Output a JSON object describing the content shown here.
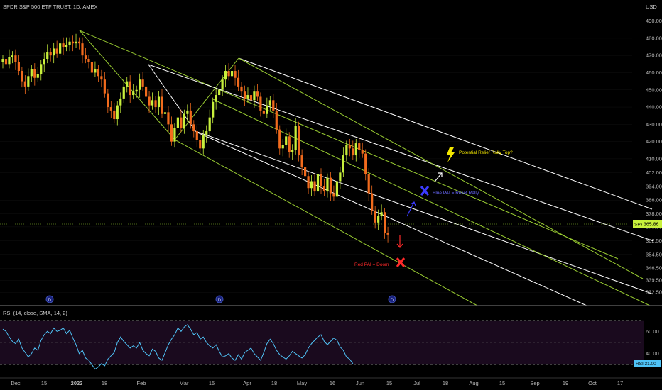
{
  "header": {
    "symbol_title": "SPDR S&P 500 ETF TRUST, 1D, AMEX",
    "currency": "USD"
  },
  "chart_data": [
    {
      "type": "candlestick",
      "title": "SPDR S&P 500 ETF TRUST, 1D, AMEX",
      "y_unit": "USD",
      "ylim": [
        326,
        496
      ],
      "x_tick_labels": [
        "Dec",
        "15",
        "2022",
        "18",
        "Feb",
        "Mar",
        "15",
        "Apr",
        "18",
        "May",
        "16",
        "Jun",
        "15",
        "Jul",
        "18",
        "Aug",
        "15",
        "Sep",
        "19",
        "Oct",
        "17"
      ],
      "y_tick_labels": [
        490.0,
        480.0,
        470.0,
        460.0,
        450.0,
        440.0,
        430.0,
        420.0,
        410.0,
        402.0,
        394.0,
        386.0,
        378.0,
        370.5,
        362.5,
        354.5,
        346.5,
        339.5,
        332.5
      ],
      "last_price": {
        "ticker": "SPY",
        "value": "365.86"
      },
      "candles_close": [
        468,
        465,
        469,
        470,
        466,
        461,
        455,
        452,
        458,
        462,
        457,
        459,
        465,
        468,
        472,
        470,
        474,
        471,
        477,
        475,
        476,
        478,
        477,
        478,
        477,
        470,
        468,
        466,
        460,
        462,
        458,
        456,
        448,
        440,
        438,
        433,
        441,
        445,
        452,
        455,
        447,
        449,
        450,
        456,
        452,
        446,
        441,
        444,
        440,
        446,
        436,
        437,
        430,
        420,
        428,
        434,
        428,
        436,
        438,
        430,
        426,
        421,
        416,
        424,
        426,
        434,
        443,
        447,
        450,
        456,
        461,
        458,
        461,
        457,
        452,
        449,
        445,
        447,
        444,
        449,
        446,
        438,
        436,
        441,
        444,
        438,
        427,
        416,
        418,
        423,
        414,
        415,
        429,
        412,
        405,
        400,
        393,
        397,
        391,
        401,
        394,
        391,
        399,
        390,
        388,
        397,
        402,
        412,
        418,
        416,
        412,
        419,
        415,
        413,
        401,
        390,
        380,
        373,
        377,
        379,
        367,
        366
      ],
      "channels": [
        {
          "color": "#9acd32",
          "style": "median-line"
        },
        {
          "color": "#ffffff",
          "style": "median-line"
        },
        {
          "color": "#9acd32",
          "style": "median-line"
        }
      ],
      "annotations": [
        {
          "text": "Potential Relief Rally Top?",
          "color": "#f2e600",
          "icon": "lightning-icon"
        },
        {
          "text": "Blue PAI = Relief Rally",
          "color": "#6a6aff",
          "icon": "blue-x-icon"
        },
        {
          "text": "Red PAI = Doom",
          "color": "#ff2a2a",
          "icon": "red-x-icon"
        }
      ],
      "event_markers": [
        "D",
        "D",
        "D"
      ]
    },
    {
      "type": "line",
      "title": "RSI (14, close, SMA, 14, 2)",
      "ylim": [
        20,
        80
      ],
      "levels": [
        70,
        50,
        30
      ],
      "y_tick_labels": [
        60.0,
        40.0
      ],
      "last_value": {
        "ticker": "RSI",
        "value": "31.00"
      },
      "values": [
        62,
        60,
        55,
        51,
        49,
        53,
        45,
        41,
        37,
        40,
        45,
        43,
        52,
        57,
        60,
        58,
        63,
        60,
        61,
        63,
        58,
        61,
        54,
        48,
        40,
        43,
        36,
        34,
        30,
        26,
        28,
        31,
        29,
        35,
        38,
        41,
        50,
        55,
        51,
        48,
        45,
        47,
        45,
        50,
        43,
        40,
        38,
        44,
        42,
        36,
        34,
        41,
        48,
        53,
        57,
        63,
        60,
        64,
        66,
        62,
        57,
        59,
        53,
        55,
        50,
        47,
        45,
        48,
        42,
        37,
        38,
        40,
        36,
        34,
        39,
        35,
        41,
        43,
        45,
        40,
        37,
        34,
        41,
        49,
        53,
        49,
        43,
        39,
        37,
        35,
        38,
        42,
        40,
        38,
        36,
        39,
        45,
        49,
        52,
        55,
        57,
        51,
        48,
        51,
        54,
        52,
        46,
        43,
        37,
        35,
        31
      ]
    }
  ],
  "colors": {
    "bull": "#c8f03c",
    "bear": "#f26b1d",
    "background": "#000000",
    "rsi_line": "#4fc3f7",
    "rsi_band": "#1a0a1e"
  },
  "labels": {
    "price_tag_ticker": "SPY",
    "price_tag_value": "365.86",
    "rsi_tag_ticker": "RSI",
    "rsi_tag_value": "31.00",
    "rsi_title": "RSI (14, close, SMA, 14, 2)",
    "marker_letter": "D"
  }
}
